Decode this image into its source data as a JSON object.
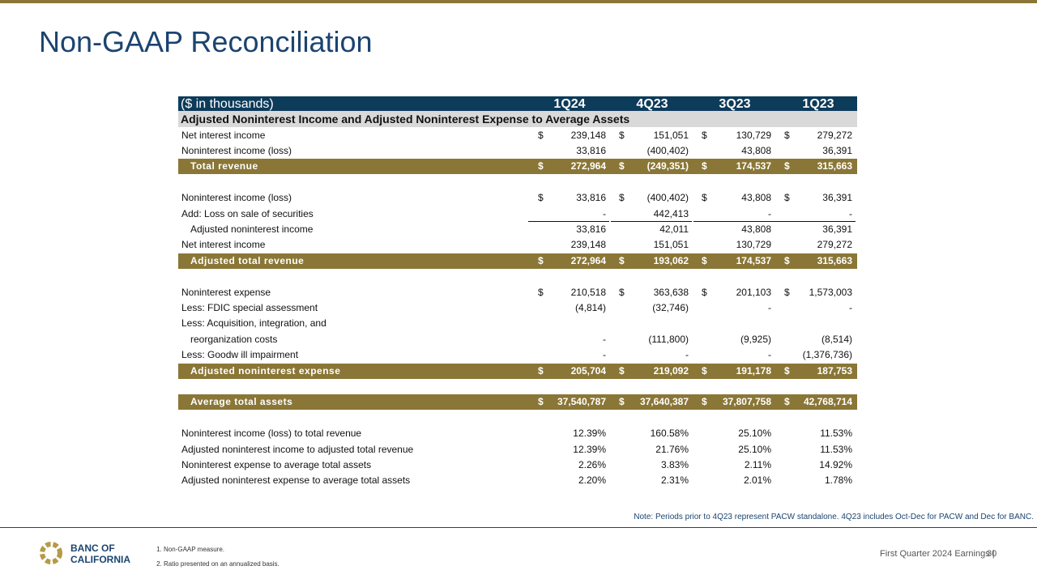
{
  "header": {
    "title": "Non-GAAP Reconciliation"
  },
  "table": {
    "unit_label": "($ in thousands)",
    "columns": [
      "1Q24",
      "4Q23",
      "3Q23",
      "1Q23"
    ],
    "section_title": "Adjusted Noninterest Income and Adjusted Noninterest Expense to Average Assets",
    "currency_symbol": "$",
    "blocks": [
      {
        "rows": [
          {
            "label": "Net interest income",
            "dollar": true,
            "values": [
              "239,148",
              "151,051",
              "130,729",
              "279,272"
            ]
          },
          {
            "label": "Noninterest income (loss)",
            "values": [
              "33,816",
              "(400,402)",
              "43,808",
              "36,391"
            ]
          },
          {
            "label": "Total revenue",
            "style": "total",
            "dollar": true,
            "values": [
              "272,964",
              "(249,351)",
              "174,537",
              "315,663"
            ]
          }
        ]
      },
      {
        "rows": [
          {
            "label": "Noninterest income (loss)",
            "dollar": true,
            "values": [
              "33,816",
              "(400,402)",
              "43,808",
              "36,391"
            ]
          },
          {
            "label": "Add: Loss on sale of securities",
            "style": "underline",
            "values": [
              "-",
              "442,413",
              "-",
              "-"
            ]
          },
          {
            "label": "Adjusted noninterest income",
            "style": "indent",
            "values": [
              "33,816",
              "42,011",
              "43,808",
              "36,391"
            ]
          },
          {
            "label": "Net interest income",
            "values": [
              "239,148",
              "151,051",
              "130,729",
              "279,272"
            ]
          },
          {
            "label": "Adjusted total revenue",
            "style": "total",
            "dollar": true,
            "values": [
              "272,964",
              "193,062",
              "174,537",
              "315,663"
            ]
          }
        ]
      },
      {
        "rows": [
          {
            "label": "Noninterest expense",
            "dollar": true,
            "values": [
              "210,518",
              "363,638",
              "201,103",
              "1,573,003"
            ]
          },
          {
            "label": "Less: FDIC special assessment",
            "values": [
              "(4,814)",
              "(32,746)",
              "-",
              "-"
            ]
          },
          {
            "label": "Less: Acquisition, integration, and"
          },
          {
            "label": "reorganization costs",
            "style": "indent",
            "values": [
              "-",
              "(111,800)",
              "(9,925)",
              "(8,514)"
            ]
          },
          {
            "label": "Less: Goodw ill impairment",
            "values": [
              "-",
              "-",
              "-",
              "(1,376,736)"
            ]
          },
          {
            "label": "Adjusted noninterest expense",
            "style": "total",
            "dollar": true,
            "values": [
              "205,704",
              "219,092",
              "191,178",
              "187,753"
            ]
          }
        ]
      },
      {
        "rows": [
          {
            "label": "Average total assets",
            "style": "total",
            "dollar": true,
            "values": [
              "37,540,787",
              "37,640,387",
              "37,807,758",
              "42,768,714"
            ]
          }
        ]
      },
      {
        "rows": [
          {
            "label": "Noninterest income (loss) to total revenue",
            "values": [
              "12.39%",
              "160.58%",
              "25.10%",
              "11.53%"
            ]
          },
          {
            "label": "Adjusted noninterest income to adjusted total revenue",
            "values": [
              "12.39%",
              "21.76%",
              "25.10%",
              "11.53%"
            ]
          },
          {
            "label": "Noninterest expense to average total assets",
            "values": [
              "2.26%",
              "3.83%",
              "2.11%",
              "14.92%"
            ]
          },
          {
            "label": "Adjusted noninterest expense to average total assets",
            "values": [
              "2.20%",
              "2.31%",
              "2.01%",
              "1.78%"
            ]
          }
        ]
      }
    ]
  },
  "note": "Note: Periods prior to 4Q23 represent PACW standalone.  4Q23 includes Oct-Dec for PACW and Dec for BANC.",
  "logo": {
    "line1": "BANC OF",
    "line2": "CALIFORNIA"
  },
  "footnotes": [
    "Non-GAAP measure.",
    "Ratio presented on an annualized basis."
  ],
  "footer": {
    "text": "First Quarter 2024 Earnings |",
    "page": "30"
  }
}
